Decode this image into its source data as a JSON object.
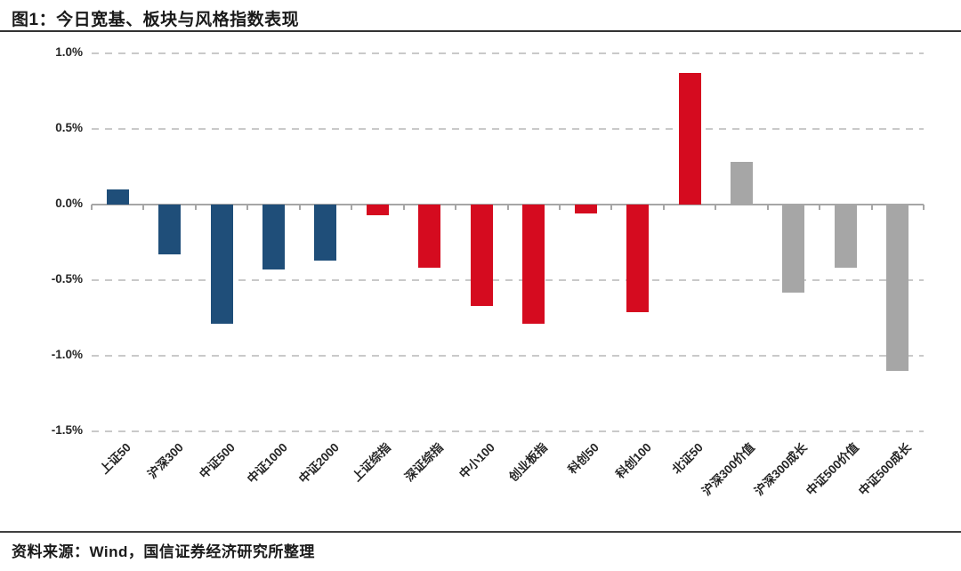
{
  "page": {
    "title": "图1：今日宽基、板块与风格指数表现",
    "source": "资料来源：Wind，国信证券经济研究所整理"
  },
  "chart_data": {
    "type": "bar",
    "title": "今日宽基、板块与风格指数表现",
    "unit": "%",
    "categories": [
      "上证50",
      "沪深300",
      "中证500",
      "中证1000",
      "中证2000",
      "上证综指",
      "深证综指",
      "中小100",
      "创业板指",
      "科创50",
      "科创100",
      "北证50",
      "沪深300价值",
      "沪深300成长",
      "中证500价值",
      "中证500成长"
    ],
    "values": [
      0.1,
      -0.33,
      -0.79,
      -0.43,
      -0.37,
      -0.07,
      -0.42,
      -0.67,
      -0.79,
      -0.06,
      -0.71,
      0.87,
      0.28,
      -0.58,
      -0.42,
      -1.1
    ],
    "bar_colors": [
      "#1F4E79",
      "#1F4E79",
      "#1F4E79",
      "#1F4E79",
      "#1F4E79",
      "#D50B1F",
      "#D50B1F",
      "#D50B1F",
      "#D50B1F",
      "#D50B1F",
      "#D50B1F",
      "#D50B1F",
      "#A6A6A6",
      "#A6A6A6",
      "#A6A6A6",
      "#A6A6A6"
    ],
    "y_ticks": [
      {
        "label": "1.0%",
        "value": 1.0
      },
      {
        "label": "0.5%",
        "value": 0.5
      },
      {
        "label": "0.0%",
        "value": 0.0
      },
      {
        "label": "-0.5%",
        "value": -0.5
      },
      {
        "label": "-1.0%",
        "value": -1.0
      },
      {
        "label": "-1.5%",
        "value": -1.5
      }
    ],
    "ylim": [
      -1.5,
      1.0
    ],
    "grid": "horizontal-dashed",
    "legend": "none",
    "xlabel": "",
    "ylabel": ""
  },
  "colors": {
    "blue_broad_base": "#1F4E79",
    "red_board": "#D50B1F",
    "gray_style": "#A6A6A6",
    "gridline": "#C9C9C9",
    "zero_axis": "#A6A6A6",
    "text": "#262626"
  }
}
